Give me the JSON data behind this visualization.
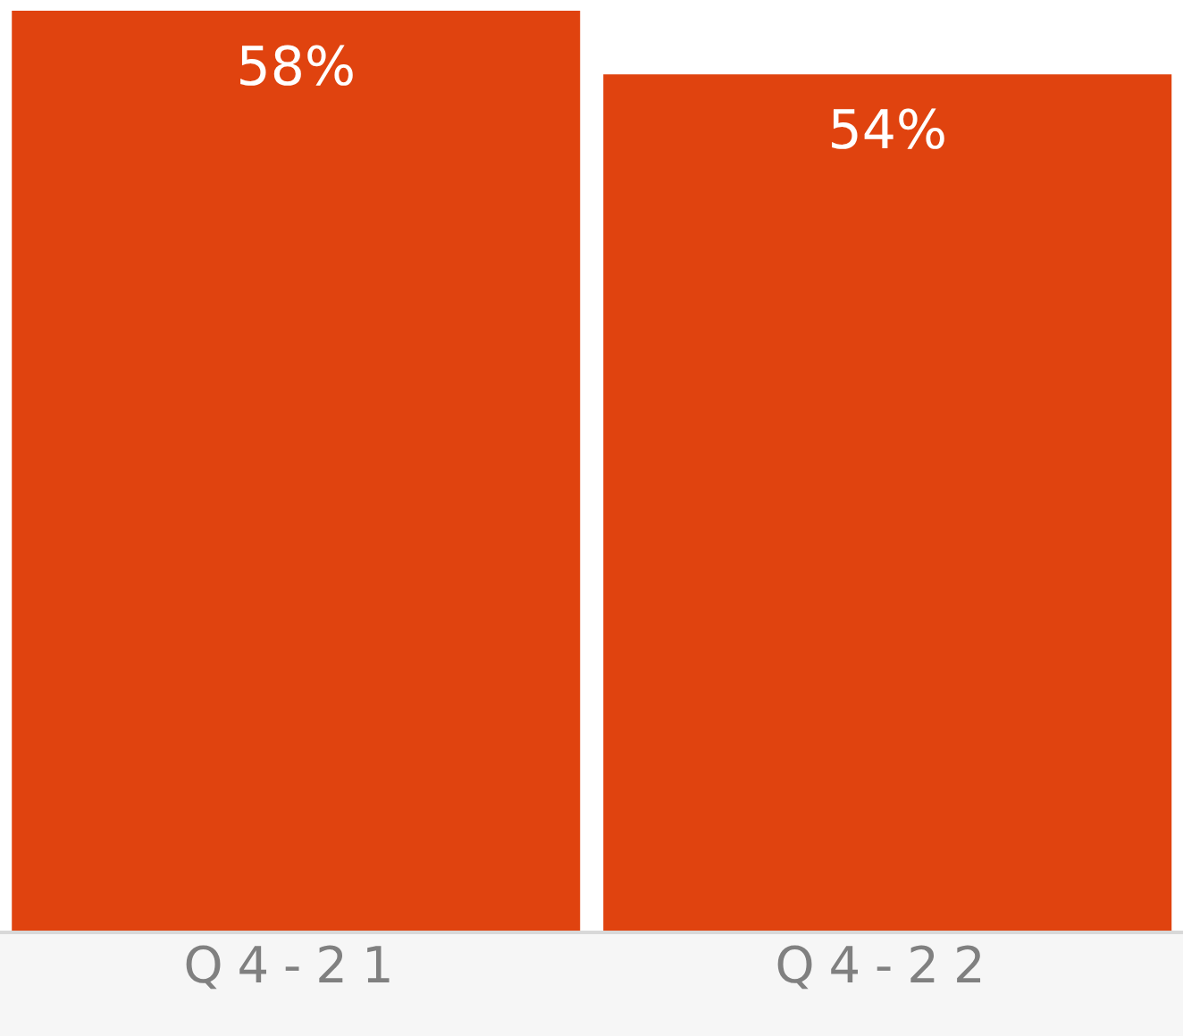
{
  "chart_data": {
    "type": "bar",
    "categories": [
      "Q4-21",
      "Q4-22"
    ],
    "values": [
      58,
      54
    ],
    "value_labels": [
      "58%",
      "54%"
    ],
    "color": "#e0430f"
  }
}
